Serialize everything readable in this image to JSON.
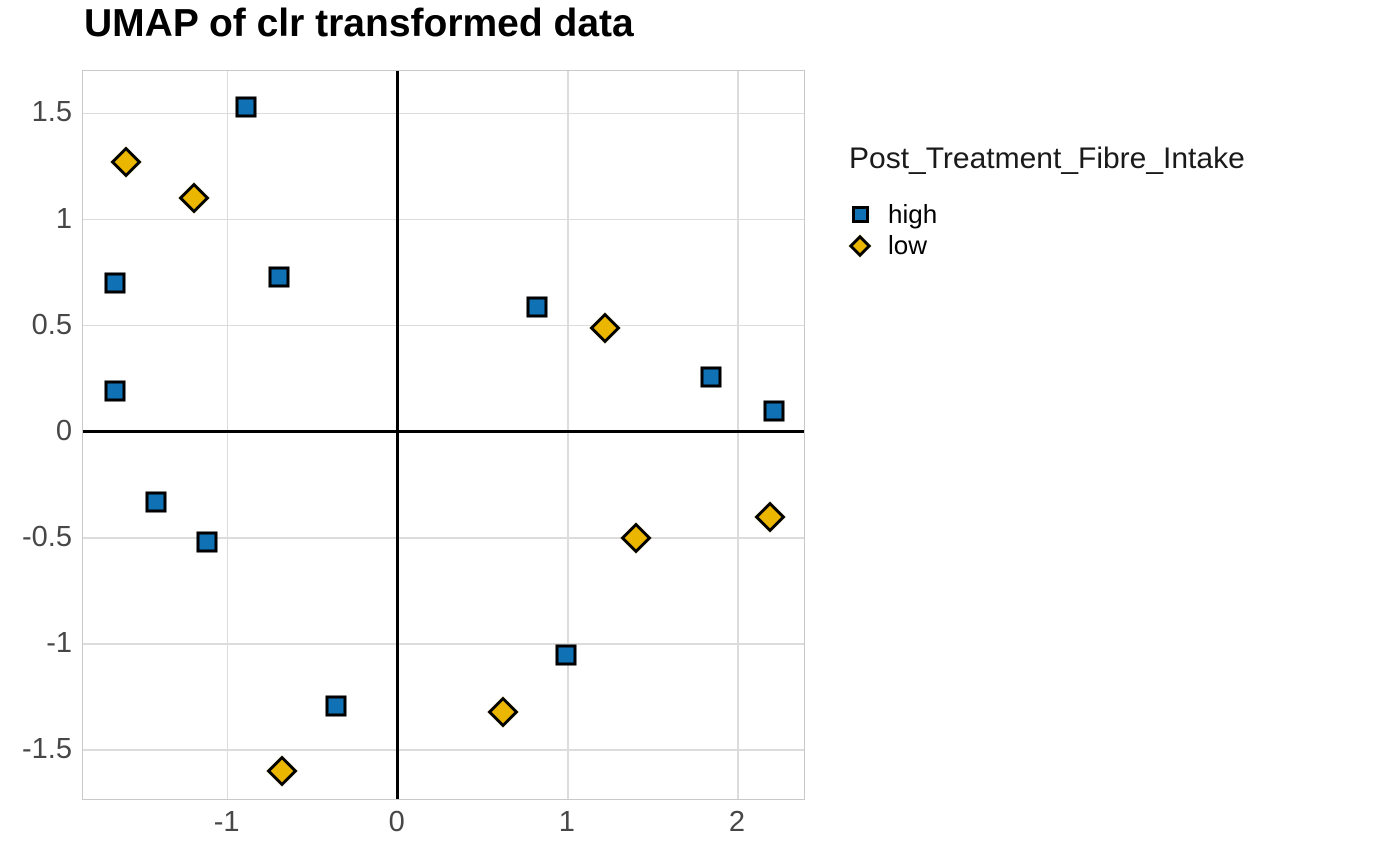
{
  "title": "UMAP of clr transformed data",
  "legend": {
    "title": "Post_Treatment_Fibre_Intake",
    "position": "right",
    "items": [
      {
        "label": "high",
        "symbol": "square",
        "color": "#1072b4"
      },
      {
        "label": "low",
        "symbol": "diamond",
        "color": "#eab600"
      }
    ]
  },
  "colors": {
    "high_fill": "#1072b4",
    "low_fill": "#eab600",
    "marker_stroke": "#000000",
    "gridline": "#dcdcdc",
    "panel_border": "#c9c9c9",
    "axis_text": "#474747",
    "zero_line": "#000000",
    "background": "#ffffff"
  },
  "chart_data": {
    "type": "scatter",
    "title": "UMAP of clr transformed data",
    "xlabel": "",
    "ylabel": "",
    "xlim": [
      -1.85,
      2.4
    ],
    "ylim": [
      -1.74,
      1.7
    ],
    "grid": true,
    "legend_position": "right",
    "zero_lines": {
      "x": 0,
      "y": 0
    },
    "x_ticks": [
      {
        "v": -1,
        "label": "-1"
      },
      {
        "v": 0,
        "label": "0"
      },
      {
        "v": 1,
        "label": "1"
      },
      {
        "v": 2,
        "label": "2"
      }
    ],
    "y_ticks": [
      {
        "v": 1.5,
        "label": "1.5"
      },
      {
        "v": 1,
        "label": "1"
      },
      {
        "v": 0.5,
        "label": "0.5"
      },
      {
        "v": 0,
        "label": "0"
      },
      {
        "v": -0.5,
        "label": "-0.5"
      },
      {
        "v": -1,
        "label": "-1"
      },
      {
        "v": -1.5,
        "label": "-1.5"
      }
    ],
    "series": [
      {
        "name": "high",
        "marker": "square",
        "color": "#1072b4",
        "points": [
          [
            -0.89,
            1.53
          ],
          [
            -1.66,
            0.7
          ],
          [
            -0.7,
            0.73
          ],
          [
            -1.66,
            0.19
          ],
          [
            0.82,
            0.59
          ],
          [
            1.84,
            0.26
          ],
          [
            2.21,
            0.1
          ],
          [
            -1.42,
            -0.33
          ],
          [
            -1.12,
            -0.52
          ],
          [
            -0.36,
            -1.29
          ],
          [
            0.99,
            -1.05
          ]
        ]
      },
      {
        "name": "low",
        "marker": "diamond",
        "color": "#eab600",
        "points": [
          [
            -1.6,
            1.27
          ],
          [
            -1.2,
            1.1
          ],
          [
            1.22,
            0.49
          ],
          [
            1.4,
            -0.5
          ],
          [
            2.19,
            -0.4
          ],
          [
            0.62,
            -1.32
          ],
          [
            -0.68,
            -1.6
          ]
        ]
      }
    ]
  }
}
